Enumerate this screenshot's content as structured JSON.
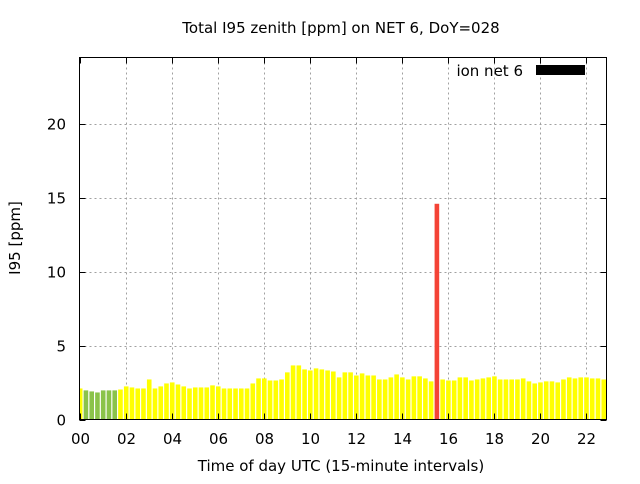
{
  "chart_data": {
    "type": "bar",
    "title": "Total I95 zenith [ppm] on NET 6, DoY=028",
    "xlabel": "Time of day UTC (15-minute intervals)",
    "ylabel": "I95 [ppm]",
    "xlim": [
      0,
      22.9
    ],
    "ylim": [
      0,
      24.5
    ],
    "x_ticks": [
      0,
      2,
      4,
      6,
      8,
      10,
      12,
      14,
      16,
      18,
      20,
      22
    ],
    "x_tick_labels": [
      "00",
      "02",
      "04",
      "06",
      "08",
      "10",
      "12",
      "14",
      "16",
      "18",
      "20",
      "22"
    ],
    "y_ticks": [
      0,
      5,
      10,
      15,
      20
    ],
    "y_tick_labels": [
      "0",
      "5",
      "10",
      "15",
      "20"
    ],
    "grid": true,
    "legend": {
      "label": "ion net 6",
      "position": "top-right",
      "color": "#000000"
    },
    "interval_hours": 0.25,
    "palette": {
      "green": "#8bc34a",
      "yellow": "#ffff00",
      "red": "#f44336"
    },
    "values": [
      2.1,
      1.97,
      1.9,
      1.83,
      1.97,
      1.97,
      1.97,
      2.03,
      2.24,
      2.17,
      2.1,
      2.1,
      2.71,
      2.1,
      2.24,
      2.44,
      2.51,
      2.37,
      2.24,
      2.1,
      2.17,
      2.17,
      2.17,
      2.31,
      2.24,
      2.1,
      2.1,
      2.1,
      2.1,
      2.1,
      2.44,
      2.78,
      2.78,
      2.64,
      2.64,
      2.71,
      3.19,
      3.66,
      3.66,
      3.39,
      3.32,
      3.46,
      3.39,
      3.32,
      3.25,
      2.85,
      3.19,
      3.19,
      2.98,
      3.12,
      2.98,
      2.98,
      2.71,
      2.71,
      2.85,
      3.05,
      2.85,
      2.71,
      2.92,
      2.92,
      2.78,
      2.58,
      14.6,
      2.71,
      2.64,
      2.64,
      2.85,
      2.85,
      2.64,
      2.71,
      2.78,
      2.85,
      2.92,
      2.71,
      2.71,
      2.71,
      2.71,
      2.78,
      2.58,
      2.44,
      2.51,
      2.58,
      2.58,
      2.51,
      2.71,
      2.85,
      2.78,
      2.85,
      2.85,
      2.78,
      2.78,
      2.71
    ],
    "colors": [
      "yellow",
      "green",
      "green",
      "green",
      "green",
      "green",
      "green",
      "yellow",
      "yellow",
      "yellow",
      "yellow",
      "yellow",
      "yellow",
      "yellow",
      "yellow",
      "yellow",
      "yellow",
      "yellow",
      "yellow",
      "yellow",
      "yellow",
      "yellow",
      "yellow",
      "yellow",
      "yellow",
      "yellow",
      "yellow",
      "yellow",
      "yellow",
      "yellow",
      "yellow",
      "yellow",
      "yellow",
      "yellow",
      "yellow",
      "yellow",
      "yellow",
      "yellow",
      "yellow",
      "yellow",
      "yellow",
      "yellow",
      "yellow",
      "yellow",
      "yellow",
      "yellow",
      "yellow",
      "yellow",
      "yellow",
      "yellow",
      "yellow",
      "yellow",
      "yellow",
      "yellow",
      "yellow",
      "yellow",
      "yellow",
      "yellow",
      "yellow",
      "yellow",
      "yellow",
      "yellow",
      "red",
      "yellow",
      "yellow",
      "yellow",
      "yellow",
      "yellow",
      "yellow",
      "yellow",
      "yellow",
      "yellow",
      "yellow",
      "yellow",
      "yellow",
      "yellow",
      "yellow",
      "yellow",
      "yellow",
      "yellow",
      "yellow",
      "yellow",
      "yellow",
      "yellow",
      "yellow",
      "yellow",
      "yellow",
      "yellow",
      "yellow",
      "yellow",
      "yellow",
      "yellow"
    ]
  }
}
